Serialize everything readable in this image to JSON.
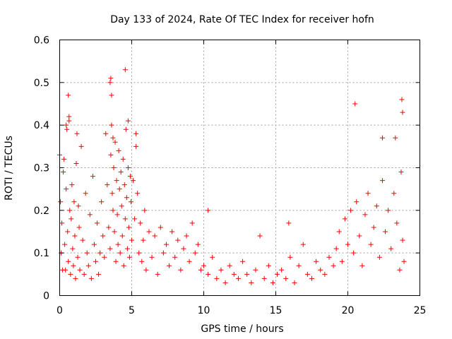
{
  "chart_data": {
    "type": "scatter",
    "title": "Day 133 of 2024, Rate Of TEC Index for receiver hofn",
    "xlabel": "GPS time / hours",
    "ylabel": "ROTI / TECUs",
    "xlim": [
      0,
      25
    ],
    "ylim": [
      0,
      0.6
    ],
    "x_ticks": [
      0,
      5,
      10,
      15,
      20,
      25
    ],
    "x_tick_labels": [
      "0",
      "5",
      "10",
      "15",
      "20",
      "25"
    ],
    "y_ticks": [
      0,
      0.1,
      0.2,
      0.3,
      0.4,
      0.5,
      0.6
    ],
    "y_tick_labels": [
      "0",
      "0.1",
      "0.2",
      "0.3",
      "0.4",
      "0.5",
      "0.6"
    ],
    "grid": true,
    "marker": "+",
    "marker_color": "#ff0000",
    "series": [
      {
        "name": "ROTI",
        "x": [
          0.0,
          0.05,
          0.1,
          0.15,
          0.2,
          0.25,
          0.3,
          0.35,
          0.4,
          0.45,
          0.5,
          0.55,
          0.6,
          0.65,
          0.7,
          0.75,
          0.8,
          0.85,
          0.9,
          0.95,
          1.0,
          1.05,
          1.1,
          1.15,
          1.2,
          1.25,
          1.3,
          1.35,
          1.4,
          1.5,
          1.6,
          1.7,
          1.8,
          1.9,
          2.0,
          2.1,
          2.2,
          2.3,
          2.4,
          2.5,
          2.6,
          2.7,
          2.8,
          2.9,
          3.0,
          3.1,
          3.2,
          3.3,
          3.4,
          3.5,
          3.55,
          3.6,
          3.65,
          3.7,
          3.75,
          3.8,
          3.85,
          3.9,
          3.95,
          4.0,
          4.05,
          4.1,
          4.15,
          4.2,
          4.25,
          4.3,
          4.35,
          4.4,
          4.45,
          4.5,
          4.55,
          4.6,
          4.65,
          4.7,
          4.75,
          4.8,
          4.85,
          4.9,
          4.95,
          5.0,
          5.1,
          5.2,
          5.3,
          5.4,
          5.5,
          5.6,
          5.7,
          5.8,
          5.9,
          6.0,
          6.2,
          6.4,
          6.6,
          6.8,
          7.0,
          7.2,
          7.4,
          7.6,
          7.8,
          8.0,
          8.2,
          8.4,
          8.6,
          8.8,
          9.0,
          9.2,
          9.4,
          9.6,
          9.8,
          10.0,
          10.3,
          10.6,
          10.9,
          11.2,
          11.5,
          11.8,
          12.1,
          12.4,
          12.7,
          13.0,
          13.3,
          13.6,
          13.9,
          14.2,
          14.5,
          14.8,
          15.1,
          15.4,
          15.7,
          16.0,
          16.3,
          16.6,
          16.9,
          17.2,
          17.5,
          17.8,
          18.1,
          18.4,
          18.7,
          19.0,
          19.2,
          19.4,
          19.6,
          19.8,
          20.0,
          20.2,
          20.4,
          20.6,
          20.8,
          21.0,
          21.2,
          21.4,
          21.6,
          21.8,
          22.0,
          22.2,
          22.4,
          22.6,
          22.8,
          23.0,
          23.2,
          23.4,
          23.6,
          23.7,
          23.8,
          23.9,
          0.6,
          0.65,
          3.5,
          3.55,
          3.6,
          3.7,
          4.55,
          4.75,
          0.45,
          5.3,
          10.3,
          15.9,
          20.5,
          23.75,
          23.8,
          22.4,
          23.3
        ],
        "y": [
          0.33,
          0.22,
          0.1,
          0.17,
          0.06,
          0.29,
          0.32,
          0.12,
          0.06,
          0.25,
          0.39,
          0.15,
          0.08,
          0.41,
          0.2,
          0.05,
          0.18,
          0.26,
          0.11,
          0.07,
          0.22,
          0.14,
          0.04,
          0.31,
          0.38,
          0.09,
          0.21,
          0.16,
          0.06,
          0.35,
          0.13,
          0.05,
          0.24,
          0.1,
          0.07,
          0.19,
          0.04,
          0.28,
          0.12,
          0.08,
          0.17,
          0.05,
          0.1,
          0.22,
          0.14,
          0.09,
          0.38,
          0.26,
          0.16,
          0.11,
          0.33,
          0.4,
          0.24,
          0.2,
          0.3,
          0.15,
          0.36,
          0.08,
          0.27,
          0.19,
          0.12,
          0.34,
          0.25,
          0.1,
          0.29,
          0.21,
          0.14,
          0.32,
          0.07,
          0.26,
          0.18,
          0.39,
          0.23,
          0.11,
          0.3,
          0.16,
          0.09,
          0.28,
          0.22,
          0.13,
          0.27,
          0.18,
          0.35,
          0.24,
          0.1,
          0.17,
          0.08,
          0.13,
          0.2,
          0.06,
          0.15,
          0.09,
          0.14,
          0.05,
          0.16,
          0.1,
          0.12,
          0.07,
          0.15,
          0.09,
          0.13,
          0.06,
          0.11,
          0.14,
          0.08,
          0.17,
          0.1,
          0.12,
          0.06,
          0.07,
          0.05,
          0.09,
          0.04,
          0.06,
          0.03,
          0.07,
          0.05,
          0.04,
          0.08,
          0.05,
          0.03,
          0.06,
          0.14,
          0.04,
          0.07,
          0.03,
          0.05,
          0.06,
          0.04,
          0.09,
          0.03,
          0.07,
          0.12,
          0.05,
          0.04,
          0.08,
          0.06,
          0.05,
          0.09,
          0.07,
          0.11,
          0.15,
          0.08,
          0.18,
          0.12,
          0.2,
          0.1,
          0.22,
          0.14,
          0.07,
          0.19,
          0.24,
          0.12,
          0.16,
          0.21,
          0.09,
          0.27,
          0.15,
          0.2,
          0.11,
          0.24,
          0.17,
          0.06,
          0.29,
          0.13,
          0.08,
          0.47,
          0.42,
          0.5,
          0.51,
          0.47,
          0.37,
          0.53,
          0.41,
          0.4,
          0.38,
          0.2,
          0.17,
          0.45,
          0.46,
          0.43,
          0.37,
          0.37
        ],
        "color": "#ff0000"
      }
    ]
  }
}
